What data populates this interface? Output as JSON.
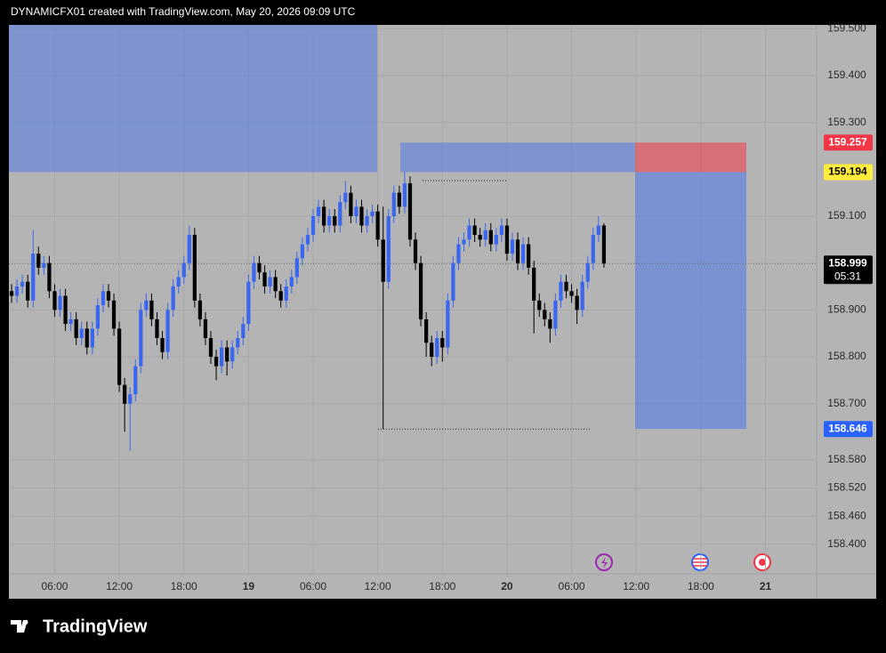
{
  "chart_data": {
    "type": "candlestick",
    "attribution": "DYNAMICFX01 created with TradingView.com, May 20, 2026 09:09 UTC",
    "brand": "TradingView",
    "up_color": "#3b66f0",
    "down_color": "#000000",
    "ylim": [
      158.337,
      159.508
    ],
    "yticks": [
      {
        "value": 159.5,
        "label": "159.500"
      },
      {
        "value": 159.4,
        "label": "159.400"
      },
      {
        "value": 159.3,
        "label": "159.300"
      },
      {
        "value": 159.1,
        "label": "159.100"
      },
      {
        "value": 158.9,
        "label": "158.900"
      },
      {
        "value": 158.8,
        "label": "158.800"
      },
      {
        "value": 158.7,
        "label": "158.700"
      },
      {
        "value": 158.58,
        "label": "158.580"
      },
      {
        "value": 158.52,
        "label": "158.520"
      },
      {
        "value": 158.46,
        "label": "158.460"
      },
      {
        "value": 158.4,
        "label": "158.400"
      }
    ],
    "grid": true,
    "price_labels": [
      {
        "value": 159.257,
        "color": "#f23645",
        "text_color": "#ffffff"
      },
      {
        "value": 159.194,
        "color": "#ffeb3b",
        "text_color": "#000000"
      },
      {
        "value": 158.999,
        "color": "#000000",
        "text_color": "#ffffff",
        "countdown": "05:31"
      },
      {
        "value": 158.646,
        "color": "#2962ff",
        "text_color": "#ffffff"
      }
    ],
    "categories": [
      null,
      null,
      null,
      null,
      null,
      null,
      null,
      null,
      "06:00",
      null,
      null,
      null,
      null,
      null,
      null,
      null,
      null,
      null,
      null,
      null,
      "12:00",
      null,
      null,
      null,
      null,
      null,
      null,
      null,
      null,
      null,
      null,
      null,
      "18:00",
      null,
      null,
      null,
      null,
      null,
      null,
      null,
      null,
      null,
      null,
      null,
      "19",
      null,
      null,
      null,
      null,
      null,
      null,
      null,
      null,
      null,
      null,
      null,
      "06:00",
      null,
      null,
      null,
      null,
      null,
      null,
      null,
      null,
      null,
      null,
      null,
      "12:00",
      null,
      null,
      null,
      null,
      null,
      null,
      null,
      null,
      null,
      null,
      null,
      "18:00",
      null,
      null,
      null,
      null,
      null,
      null,
      null,
      null,
      null,
      null,
      null,
      "20",
      null,
      null,
      null,
      null,
      null,
      null,
      null,
      null,
      null,
      null,
      null,
      "06:00",
      null,
      null,
      null,
      null,
      null,
      null,
      null,
      null,
      null,
      null,
      null,
      "12:00",
      null,
      null,
      null,
      null,
      null,
      null,
      null,
      null,
      null,
      null,
      null,
      "18:00",
      null,
      null,
      null,
      null,
      null,
      null,
      null,
      null,
      null,
      null,
      null,
      "21",
      null,
      null,
      null,
      null,
      null,
      null,
      null,
      null,
      null
    ],
    "open": [
      158.94,
      158.93,
      158.95,
      158.96,
      158.92,
      159.02,
      158.99,
      159.0,
      158.94,
      158.9,
      158.93,
      158.87,
      158.88,
      158.84,
      158.86,
      158.82,
      158.86,
      158.91,
      158.94,
      158.92,
      158.86,
      158.74,
      158.7,
      158.72,
      158.78,
      158.9,
      158.92,
      158.88,
      158.84,
      158.81,
      158.9,
      158.95,
      158.97,
      159.0,
      159.06,
      158.92,
      158.88,
      158.84,
      158.8,
      158.78,
      158.82,
      158.79,
      158.82,
      158.84,
      158.87,
      158.96,
      159.0,
      158.98,
      158.95,
      158.97,
      158.94,
      158.92,
      158.95,
      158.97,
      159.01,
      159.04,
      159.06,
      159.1,
      159.12,
      159.08,
      159.1,
      159.08,
      159.13,
      159.15,
      159.1,
      159.12,
      159.08,
      159.1,
      159.11,
      159.05,
      158.96,
      159.1,
      159.15,
      159.12,
      159.17,
      159.05,
      159.0,
      158.88,
      158.83,
      158.8,
      158.84,
      158.82,
      158.92,
      159.0,
      159.04,
      159.05,
      159.08,
      159.06,
      159.05,
      159.07,
      159.04,
      159.06,
      159.08,
      159.02,
      159.05,
      159.0,
      159.04,
      158.99,
      158.92,
      158.9,
      158.88,
      158.86,
      158.92,
      158.96,
      158.94,
      158.93,
      158.9,
      158.96,
      159.0,
      159.06,
      159.08,
      null,
      null,
      null,
      null,
      null,
      null,
      null,
      null,
      null,
      null,
      null,
      null,
      null,
      null,
      null,
      null,
      null,
      null,
      null,
      null,
      null,
      null,
      null,
      null,
      null,
      null,
      null,
      null,
      null,
      null,
      null,
      null,
      null,
      null,
      null,
      null,
      null,
      null,
      null
    ],
    "high": [
      158.955,
      158.965,
      158.975,
      158.975,
      159.07,
      159.035,
      159.015,
      159.015,
      158.955,
      158.945,
      158.945,
      158.895,
      158.895,
      158.875,
      158.875,
      158.875,
      158.925,
      158.955,
      158.955,
      158.935,
      158.875,
      158.755,
      158.735,
      158.795,
      158.915,
      158.935,
      158.935,
      158.895,
      158.855,
      158.915,
      158.965,
      158.985,
      159.015,
      159.08,
      159.075,
      158.935,
      158.895,
      158.855,
      158.815,
      158.835,
      158.835,
      158.835,
      158.855,
      158.885,
      158.975,
      159.015,
      159.015,
      158.995,
      158.985,
      158.985,
      158.955,
      158.965,
      158.985,
      159.025,
      159.055,
      159.075,
      159.115,
      159.135,
      159.135,
      159.115,
      159.115,
      159.145,
      159.175,
      159.165,
      159.135,
      159.135,
      159.115,
      159.125,
      159.125,
      159.12,
      159.115,
      159.165,
      159.165,
      159.194,
      159.185,
      159.065,
      159.015,
      158.895,
      158.845,
      158.855,
      158.855,
      158.935,
      159.015,
      159.055,
      159.065,
      159.095,
      159.095,
      159.075,
      159.085,
      159.085,
      159.075,
      159.095,
      159.095,
      159.065,
      159.065,
      159.055,
      159.055,
      159.005,
      158.935,
      158.915,
      158.895,
      158.935,
      158.975,
      158.975,
      158.955,
      158.945,
      158.975,
      159.015,
      159.075,
      159.1,
      159.085,
      null,
      null,
      null,
      null,
      null,
      null,
      null,
      null,
      null,
      null,
      null,
      null,
      null,
      null,
      null,
      null,
      null,
      null,
      null,
      null,
      null,
      null,
      null,
      null,
      null,
      null,
      null,
      null,
      null,
      null,
      null,
      null,
      null,
      null,
      null,
      null,
      null,
      null,
      null
    ],
    "low": [
      158.915,
      158.915,
      158.935,
      158.905,
      158.905,
      158.975,
      158.975,
      158.925,
      158.885,
      158.885,
      158.855,
      158.855,
      158.825,
      158.825,
      158.805,
      158.805,
      158.845,
      158.895,
      158.905,
      158.845,
      158.725,
      158.64,
      158.6,
      158.705,
      158.765,
      158.885,
      158.865,
      158.825,
      158.795,
      158.795,
      158.885,
      158.935,
      158.955,
      158.985,
      158.905,
      158.865,
      158.825,
      158.785,
      158.75,
      158.765,
      158.76,
      158.775,
      158.805,
      158.825,
      158.855,
      158.945,
      158.965,
      158.935,
      158.935,
      158.925,
      158.905,
      158.905,
      158.935,
      158.955,
      158.995,
      159.025,
      159.045,
      159.085,
      159.065,
      159.065,
      159.065,
      159.065,
      159.115,
      159.085,
      159.085,
      159.065,
      159.065,
      159.085,
      159.035,
      158.646,
      158.945,
      159.085,
      159.105,
      159.105,
      159.035,
      158.985,
      158.865,
      158.8,
      158.78,
      158.785,
      158.79,
      158.805,
      158.905,
      158.985,
      159.025,
      159.035,
      159.045,
      159.035,
      159.035,
      159.025,
      159.025,
      159.045,
      159.005,
      159.005,
      158.985,
      158.985,
      158.975,
      158.85,
      158.885,
      158.865,
      158.83,
      158.845,
      158.905,
      158.925,
      158.915,
      158.87,
      158.885,
      158.945,
      158.985,
      159.045,
      158.99,
      null,
      null,
      null,
      null,
      null,
      null,
      null,
      null,
      null,
      null,
      null,
      null,
      null,
      null,
      null,
      null,
      null,
      null,
      null,
      null,
      null,
      null,
      null,
      null,
      null,
      null,
      null,
      null,
      null,
      null,
      null,
      null,
      null,
      null,
      null,
      null,
      null,
      null,
      null
    ],
    "close": [
      158.93,
      158.95,
      158.96,
      158.92,
      159.02,
      158.99,
      159.0,
      158.94,
      158.9,
      158.93,
      158.87,
      158.88,
      158.84,
      158.86,
      158.82,
      158.86,
      158.91,
      158.94,
      158.92,
      158.86,
      158.74,
      158.7,
      158.72,
      158.78,
      158.9,
      158.92,
      158.88,
      158.84,
      158.81,
      158.9,
      158.95,
      158.97,
      159.0,
      159.06,
      158.92,
      158.88,
      158.84,
      158.8,
      158.78,
      158.82,
      158.79,
      158.82,
      158.84,
      158.87,
      158.96,
      159.0,
      158.98,
      158.95,
      158.97,
      158.94,
      158.92,
      158.95,
      158.97,
      159.01,
      159.04,
      159.06,
      159.1,
      159.12,
      159.08,
      159.1,
      159.08,
      159.13,
      159.15,
      159.1,
      159.12,
      159.08,
      159.1,
      159.11,
      159.05,
      158.96,
      159.1,
      159.15,
      159.12,
      159.17,
      159.05,
      159.0,
      158.88,
      158.83,
      158.8,
      158.84,
      158.82,
      158.92,
      159.0,
      159.04,
      159.05,
      159.08,
      159.06,
      159.05,
      159.07,
      159.04,
      159.06,
      159.08,
      159.02,
      159.05,
      159.0,
      159.04,
      158.99,
      158.92,
      158.9,
      158.88,
      158.86,
      158.92,
      158.96,
      158.94,
      158.93,
      158.9,
      158.96,
      159.0,
      159.06,
      159.08,
      158.999,
      null,
      null,
      null,
      null,
      null,
      null,
      null,
      null,
      null,
      null,
      null,
      null,
      null,
      null,
      null,
      null,
      null,
      null,
      null,
      null,
      null,
      null,
      null,
      null,
      null,
      null,
      null,
      null,
      null,
      null,
      null,
      null,
      null,
      null,
      null,
      null,
      null,
      null,
      null
    ]
  }
}
